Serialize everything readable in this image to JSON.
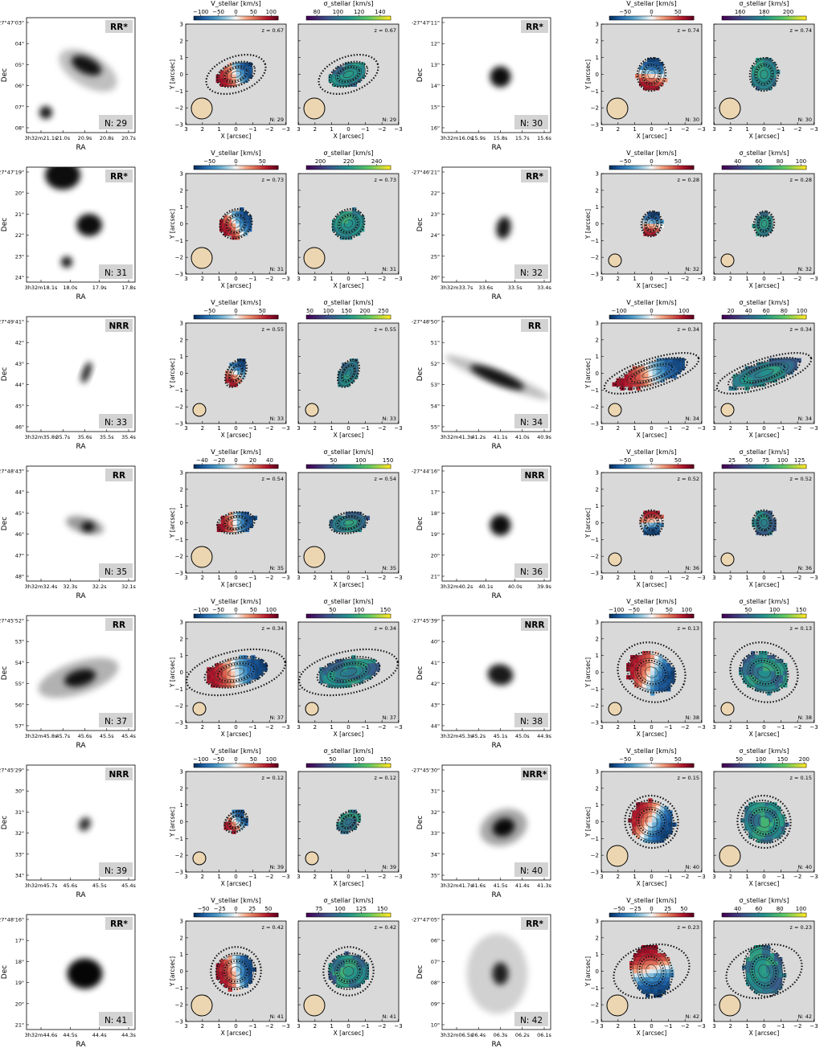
{
  "common": {
    "dec_label": "Dec",
    "ra_label": "RA",
    "x_label": "X [arcsec]",
    "y_label": "Y [arcsec]",
    "vel_cbar_label": "V_stellar [km/s]",
    "sig_cbar_label": "σ_stellar [km/s]",
    "map_axis_ticks": [
      "3",
      "2",
      "1",
      "0",
      "−1",
      "−2",
      "−3"
    ],
    "map_y_ticks": [
      "3",
      "2",
      "1",
      "0",
      "−1",
      "−2",
      "−3"
    ]
  },
  "chart_data": [
    {
      "type": "heatmap",
      "id": 29,
      "class": "RR*",
      "n_label": "N: 29",
      "z_label": "z = 0.67",
      "dec_ticks": [
        "-27°47'03\"",
        "04\"",
        "05\"",
        "06\"",
        "07\"",
        "08\""
      ],
      "ra_ticks": [
        "3h32m21.1s",
        "21.0s",
        "20.9s",
        "20.8s",
        "20.7s"
      ],
      "vel_ticks": [
        "−100",
        "−50",
        "0",
        "50",
        "100"
      ],
      "sig_ticks": [
        "80",
        "100",
        "120",
        "140"
      ],
      "vel_range": [
        -120,
        120
      ],
      "sig_range": [
        70,
        150
      ]
    },
    {
      "type": "heatmap",
      "id": 30,
      "class": "RR*",
      "n_label": "N: 30",
      "z_label": "z = 0.74",
      "dec_ticks": [
        "-27°47'11\"",
        "12\"",
        "13\"",
        "14\"",
        "15\"",
        "16\""
      ],
      "ra_ticks": [
        "3h32m16.0s",
        "15.9s",
        "15.8s",
        "15.7s",
        "15.6s"
      ],
      "vel_ticks": [
        "−50",
        "0",
        "50"
      ],
      "sig_ticks": [
        "160",
        "180",
        "200"
      ],
      "vel_range": [
        -80,
        80
      ],
      "sig_range": [
        145,
        215
      ]
    },
    {
      "type": "heatmap",
      "id": 31,
      "class": "RR*",
      "n_label": "N: 31",
      "z_label": "z = 0.73",
      "dec_ticks": [
        "-27°47'19\"",
        "20\"",
        "21\"",
        "22\"",
        "23\"",
        "24\""
      ],
      "ra_ticks": [
        "3h32m18.1s",
        "18.0s",
        "17.9s",
        "17.8s"
      ],
      "vel_ticks": [
        "−50",
        "0",
        "50"
      ],
      "sig_ticks": [
        "200",
        "220",
        "240"
      ],
      "vel_range": [
        -80,
        80
      ],
      "sig_range": [
        190,
        250
      ]
    },
    {
      "type": "heatmap",
      "id": 32,
      "class": "RR*",
      "n_label": "N: 32",
      "z_label": "z = 0.28",
      "dec_ticks": [
        "-27°46'21\"",
        "22\"",
        "23\"",
        "24\"",
        "25\"",
        "26\""
      ],
      "ra_ticks": [
        "3h32m33.7s",
        "33.6s",
        "33.5s",
        "33.4s"
      ],
      "vel_ticks": [
        "−50",
        "0",
        "50"
      ],
      "sig_ticks": [
        "40",
        "60",
        "80",
        "100"
      ],
      "vel_range": [
        -80,
        80
      ],
      "sig_range": [
        25,
        105
      ]
    },
    {
      "type": "heatmap",
      "id": 33,
      "class": "NRR",
      "n_label": "N: 33",
      "z_label": "z = 0.55",
      "dec_ticks": [
        "-27°49'41\"",
        "42\"",
        "43\"",
        "44\"",
        "45\"",
        "46\""
      ],
      "ra_ticks": [
        "3h32m35.8s",
        "35.7s",
        "35.6s",
        "35.5s",
        "35.4s"
      ],
      "vel_ticks": [
        "−50",
        "0",
        "50"
      ],
      "sig_ticks": [
        "50",
        "100",
        "150",
        "200",
        "250"
      ],
      "vel_range": [
        -80,
        80
      ],
      "sig_range": [
        40,
        270
      ]
    },
    {
      "type": "heatmap",
      "id": 34,
      "class": "RR",
      "n_label": "N: 34",
      "z_label": "z = 0.34",
      "dec_ticks": [
        "-27°48'50\"",
        "51\"",
        "52\"",
        "53\"",
        "54\"",
        "55\""
      ],
      "ra_ticks": [
        "3h32m41.3s",
        "41.2s",
        "41.1s",
        "41.0s",
        "40.9s"
      ],
      "vel_ticks": [
        "−100",
        "0",
        "100"
      ],
      "sig_ticks": [
        "20",
        "40",
        "60",
        "80",
        "100"
      ],
      "vel_range": [
        -130,
        130
      ],
      "sig_range": [
        10,
        105
      ]
    },
    {
      "type": "heatmap",
      "id": 35,
      "class": "RR",
      "n_label": "N: 35",
      "z_label": "z = 0.54",
      "dec_ticks": [
        "-27°48'43\"",
        "44\"",
        "45\"",
        "46\"",
        "47\"",
        "48\""
      ],
      "ra_ticks": [
        "3h32m32.4s",
        "32.3s",
        "32.2s",
        "32.1s"
      ],
      "vel_ticks": [
        "−40",
        "−20",
        "0",
        "20",
        "40"
      ],
      "sig_ticks": [
        "50",
        "100",
        "150"
      ],
      "vel_range": [
        -50,
        50
      ],
      "sig_range": [
        0,
        155
      ]
    },
    {
      "type": "heatmap",
      "id": 36,
      "class": "NRR",
      "n_label": "N: 36",
      "z_label": "z = 0.52",
      "dec_ticks": [
        "-27°44'16\"",
        "17\"",
        "18\"",
        "19\"",
        "20\"",
        "21\""
      ],
      "ra_ticks": [
        "3h32m40.2s",
        "40.1s",
        "40.0s",
        "39.9s"
      ],
      "vel_ticks": [
        "−50",
        "0",
        "50"
      ],
      "sig_ticks": [
        "25",
        "50",
        "75",
        "100",
        "125"
      ],
      "vel_range": [
        -80,
        80
      ],
      "sig_range": [
        10,
        135
      ]
    },
    {
      "type": "heatmap",
      "id": 37,
      "class": "RR",
      "n_label": "N: 37",
      "z_label": "z = 0.34",
      "dec_ticks": [
        "-27°45'52\"",
        "53\"",
        "54\"",
        "55\"",
        "56\"",
        "57\""
      ],
      "ra_ticks": [
        "3h32m45.8s",
        "45.7s",
        "45.6s",
        "45.5s",
        "45.4s"
      ],
      "vel_ticks": [
        "−100",
        "−50",
        "0",
        "50",
        "100"
      ],
      "sig_ticks": [
        "50",
        "100",
        "150"
      ],
      "vel_range": [
        -120,
        120
      ],
      "sig_range": [
        0,
        160
      ]
    },
    {
      "type": "heatmap",
      "id": 38,
      "class": "NRR",
      "n_label": "N: 38",
      "z_label": "z = 0.13",
      "dec_ticks": [
        "-27°45'39\"",
        "40\"",
        "41\"",
        "42\"",
        "43\"",
        "44\""
      ],
      "ra_ticks": [
        "3h32m45.3s",
        "45.2s",
        "45.1s",
        "45.0s",
        "44.9s"
      ],
      "vel_ticks": [
        "−100",
        "−50",
        "0",
        "50",
        "100"
      ],
      "sig_ticks": [
        "50",
        "100",
        "150"
      ],
      "vel_range": [
        -120,
        120
      ],
      "sig_range": [
        0,
        160
      ]
    },
    {
      "type": "heatmap",
      "id": 39,
      "class": "NRR",
      "n_label": "N: 39",
      "z_label": "z = 0.12",
      "dec_ticks": [
        "-27°45'29\"",
        "30\"",
        "31\"",
        "32\"",
        "33\"",
        "34\""
      ],
      "ra_ticks": [
        "3h32m45.7s",
        "45.6s",
        "45.5s",
        "45.4s"
      ],
      "vel_ticks": [
        "−100",
        "−50",
        "0",
        "50",
        "100"
      ],
      "sig_ticks": [
        "50",
        "100",
        "150"
      ],
      "vel_range": [
        -120,
        120
      ],
      "sig_range": [
        0,
        160
      ]
    },
    {
      "type": "heatmap",
      "id": 40,
      "class": "NRR*",
      "n_label": "N: 40",
      "z_label": "z = 0.15",
      "dec_ticks": [
        "-27°45'30\"",
        "31\"",
        "32\"",
        "33\"",
        "34\"",
        "35\""
      ],
      "ra_ticks": [
        "3h32m41.7s",
        "41.6s",
        "41.5s",
        "41.4s",
        "41.3s"
      ],
      "vel_ticks": [
        "−50",
        "0",
        "50"
      ],
      "sig_ticks": [
        "50",
        "100",
        "150",
        "200"
      ],
      "vel_range": [
        -80,
        80
      ],
      "sig_range": [
        10,
        205
      ]
    },
    {
      "type": "heatmap",
      "id": 41,
      "class": "RR*",
      "n_label": "N: 41",
      "z_label": "z = 0.42",
      "dec_ticks": [
        "-27°48'16\"",
        "17\"",
        "18\"",
        "19\"",
        "20\"",
        "21\""
      ],
      "ra_ticks": [
        "3h32m44.6s",
        "44.5s",
        "44.4s",
        "44.3s"
      ],
      "vel_ticks": [
        "−50",
        "−25",
        "0",
        "25",
        "50"
      ],
      "sig_ticks": [
        "75",
        "100",
        "125",
        "150"
      ],
      "vel_range": [
        -65,
        65
      ],
      "sig_range": [
        60,
        160
      ]
    },
    {
      "type": "heatmap",
      "id": 42,
      "class": "RR*",
      "n_label": "N: 42",
      "z_label": "z = 0.23",
      "dec_ticks": [
        "-27°47'05\"",
        "06\"",
        "07\"",
        "08\"",
        "09\"",
        "10\""
      ],
      "ra_ticks": [
        "3h32m06.5s",
        "06.4s",
        "06.3s",
        "06.2s",
        "06.1s"
      ],
      "vel_ticks": [
        "−50",
        "−25",
        "0",
        "25",
        "50"
      ],
      "sig_ticks": [
        "40",
        "60",
        "80",
        "100"
      ],
      "vel_range": [
        -65,
        65
      ],
      "sig_range": [
        25,
        105
      ]
    }
  ]
}
